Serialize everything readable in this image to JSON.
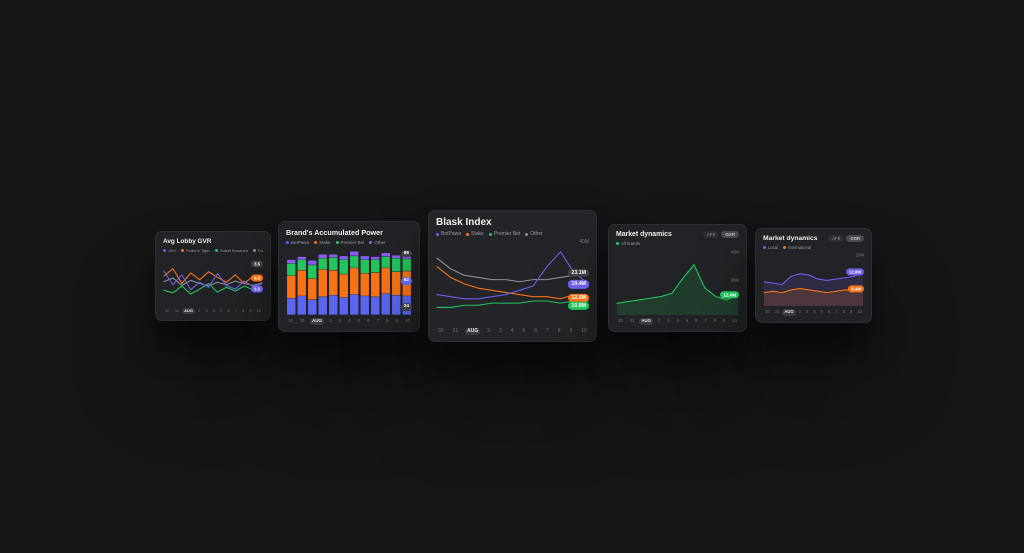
{
  "page": {
    "background": "#161616"
  },
  "chart_data": [
    {
      "id": "avg-lobby-gvr",
      "type": "line",
      "title": "Avg Lobby GVR",
      "legend": [
        {
          "label": "JetX",
          "color": "#6d5de8"
        },
        {
          "label": "Fortune Tiger",
          "color": "#f97316"
        },
        {
          "label": "Sweet Bonanza",
          "color": "#22c55e"
        },
        {
          "label": "Fortune OX",
          "color": "#8b8f98"
        }
      ],
      "categories": [
        "30",
        "31",
        "AUG",
        "2",
        "3",
        "4",
        "5",
        "6",
        "7",
        "8",
        "9",
        "10"
      ],
      "highlight_index": 2,
      "ylim": [
        0,
        8
      ],
      "series": [
        {
          "name": "Fortune OX",
          "color": "#8b8f98",
          "values": [
            3.7,
            4.3,
            3.1,
            3.9,
            3.4,
            3.0,
            3.6,
            3.2,
            3.8,
            3.4,
            3.1,
            3.5
          ]
        },
        {
          "name": "Sweet Bonanza",
          "color": "#22c55e",
          "values": [
            2.3,
            1.9,
            3.0,
            1.7,
            2.5,
            3.4,
            2.0,
            2.8,
            2.2,
            3.0,
            2.4,
            2.7
          ]
        },
        {
          "name": "Fortune Tiger",
          "color": "#f97316",
          "values": [
            4.6,
            5.8,
            3.4,
            5.1,
            4.0,
            5.3,
            4.4,
            3.6,
            4.8,
            3.4,
            4.6,
            4.0
          ]
        },
        {
          "name": "JetX",
          "color": "#6d5de8",
          "values": [
            5.4,
            3.2,
            4.8,
            2.4,
            3.6,
            2.8,
            5.0,
            3.1,
            2.5,
            3.8,
            2.9,
            3.3
          ]
        }
      ],
      "badges": [
        {
          "label": "3.5",
          "color": "#3f4045",
          "pos": 0.18
        },
        {
          "label": "4.0",
          "color": "#f97316",
          "pos": 0.46
        },
        {
          "label": "3.3",
          "color": "#6d5de8",
          "pos": 0.68
        }
      ],
      "y_labels": []
    },
    {
      "id": "brands-accumulated-power",
      "type": "stacked_bar",
      "title": "Brand's Accumulated Power",
      "legend": [
        {
          "label": "BetPawa",
          "color": "#5b67f2"
        },
        {
          "label": "Stake",
          "color": "#f97316"
        },
        {
          "label": "Premier Bet",
          "color": "#22c55e"
        },
        {
          "label": "Other",
          "color": "#8b5cf6"
        }
      ],
      "categories": [
        "30",
        "31",
        "AUG",
        "2",
        "3",
        "4",
        "5",
        "6",
        "7",
        "8",
        "9",
        "10"
      ],
      "highlight_index": 2,
      "ylim": [
        0,
        90
      ],
      "series": [
        {
          "name": "BetPawa",
          "color": "#5b67f2",
          "values": [
            22,
            25,
            20,
            24,
            26,
            23,
            27,
            25,
            24,
            28,
            26,
            25
          ]
        },
        {
          "name": "Stake",
          "color": "#f97316",
          "values": [
            30,
            34,
            28,
            36,
            33,
            31,
            35,
            30,
            32,
            34,
            31,
            33
          ]
        },
        {
          "name": "Premier Bet",
          "color": "#22c55e",
          "values": [
            16,
            14,
            18,
            15,
            17,
            19,
            16,
            18,
            17,
            15,
            18,
            16
          ]
        },
        {
          "name": "Other",
          "color": "#8b5cf6",
          "values": [
            5,
            4,
            6,
            5,
            4,
            5,
            6,
            5,
            4,
            5,
            4,
            5
          ]
        }
      ],
      "badges": [
        {
          "label": "86",
          "color": "#3f4045",
          "pos": 0.1
        },
        {
          "label": "62",
          "color": "#5b67f2",
          "pos": 0.5
        },
        {
          "label": "24",
          "color": "#3f4045",
          "pos": 0.88
        }
      ],
      "y_labels": []
    },
    {
      "id": "blask-index",
      "type": "line",
      "title": "Blask Index",
      "legend": [
        {
          "label": "BetPawa",
          "color": "#6d5de8"
        },
        {
          "label": "Stake",
          "color": "#f97316"
        },
        {
          "label": "Premier Bet",
          "color": "#22c55e"
        },
        {
          "label": "Other",
          "color": "#8b8f98"
        }
      ],
      "categories": [
        "30",
        "31",
        "AUG",
        "2",
        "3",
        "4",
        "5",
        "6",
        "7",
        "8",
        "9",
        "10"
      ],
      "highlight_index": 2,
      "ylim": [
        0,
        40
      ],
      "series": [
        {
          "name": "Other",
          "color": "#8b8f98",
          "values": [
            31,
            26,
            23,
            22,
            21,
            21,
            20,
            21,
            21,
            22,
            23,
            23.1
          ]
        },
        {
          "name": "Stake",
          "color": "#f97316",
          "values": [
            27,
            22,
            19,
            17,
            16,
            15,
            14,
            13,
            13,
            12,
            14,
            12.6
          ]
        },
        {
          "name": "Premier Bet",
          "color": "#22c55e",
          "values": [
            8,
            8,
            9,
            9,
            10,
            10,
            10,
            11,
            11,
            10,
            11,
            10.8
          ]
        },
        {
          "name": "BetPawa",
          "color": "#6d5de8",
          "values": [
            14,
            13,
            12,
            12,
            13,
            14,
            16,
            18,
            27,
            34,
            24,
            19.4
          ]
        }
      ],
      "badges": [
        {
          "label": "23.1M",
          "color": "#3f4045",
          "pos": 0.4
        },
        {
          "label": "19.4M",
          "color": "#6d5de8",
          "pos": 0.53
        },
        {
          "label": "12.6M",
          "color": "#f97316",
          "pos": 0.69
        },
        {
          "label": "10.8M",
          "color": "#22c55e",
          "pos": 0.78
        }
      ],
      "y_labels": [
        {
          "label": "40M",
          "pos": 0.04
        }
      ]
    },
    {
      "id": "market-dynamics-all-brands",
      "type": "area",
      "title": "Market dynamics",
      "toggles": [
        {
          "label": "AFS",
          "active": false
        },
        {
          "label": "GGR",
          "active": true
        }
      ],
      "legend": [
        {
          "label": "All brands",
          "color": "#22c55e"
        }
      ],
      "categories": [
        "30",
        "31",
        "AUG",
        "2",
        "3",
        "4",
        "5",
        "6",
        "7",
        "8",
        "9",
        "10"
      ],
      "highlight_index": 2,
      "ylim": [
        0,
        40
      ],
      "series": [
        {
          "name": "All brands",
          "color": "#22c55e",
          "fill": true,
          "values": [
            7,
            8,
            9,
            10,
            11,
            13,
            22,
            30,
            16,
            11,
            9,
            12.4
          ]
        }
      ],
      "badges": [
        {
          "label": "12.4M",
          "color": "#22c55e",
          "pos": 0.69
        }
      ],
      "y_labels": [
        {
          "label": "40M",
          "pos": 0.05
        },
        {
          "label": "20M",
          "pos": 0.48
        }
      ]
    },
    {
      "id": "market-dynamics-local-international",
      "type": "area",
      "title": "Market dynamics",
      "toggles": [
        {
          "label": "AFS",
          "active": false
        },
        {
          "label": "GGR",
          "active": true
        }
      ],
      "legend": [
        {
          "label": "Local",
          "color": "#6d5de8"
        },
        {
          "label": "International",
          "color": "#f97316"
        }
      ],
      "categories": [
        "30",
        "31",
        "AUG",
        "2",
        "3",
        "4",
        "5",
        "6",
        "7",
        "8",
        "9",
        "10"
      ],
      "highlight_index": 2,
      "ylim": [
        0,
        20
      ],
      "series": [
        {
          "name": "Local",
          "color": "#6d5de8",
          "fill": true,
          "values": [
            9,
            8.5,
            8,
            11,
            12,
            11.5,
            10,
            9.5,
            10,
            10.5,
            11,
            12.8
          ]
        },
        {
          "name": "International",
          "color": "#f97316",
          "fill": true,
          "values": [
            5,
            5.5,
            5,
            6,
            6.5,
            6,
            5.5,
            5,
            5.5,
            6,
            5.8,
            6.4
          ]
        }
      ],
      "badges": [
        {
          "label": "12.8M",
          "color": "#6d5de8",
          "pos": 0.36
        },
        {
          "label": "6.4M",
          "color": "#f97316",
          "pos": 0.68
        }
      ],
      "y_labels": [
        {
          "label": "20M",
          "pos": 0.06
        }
      ]
    }
  ]
}
